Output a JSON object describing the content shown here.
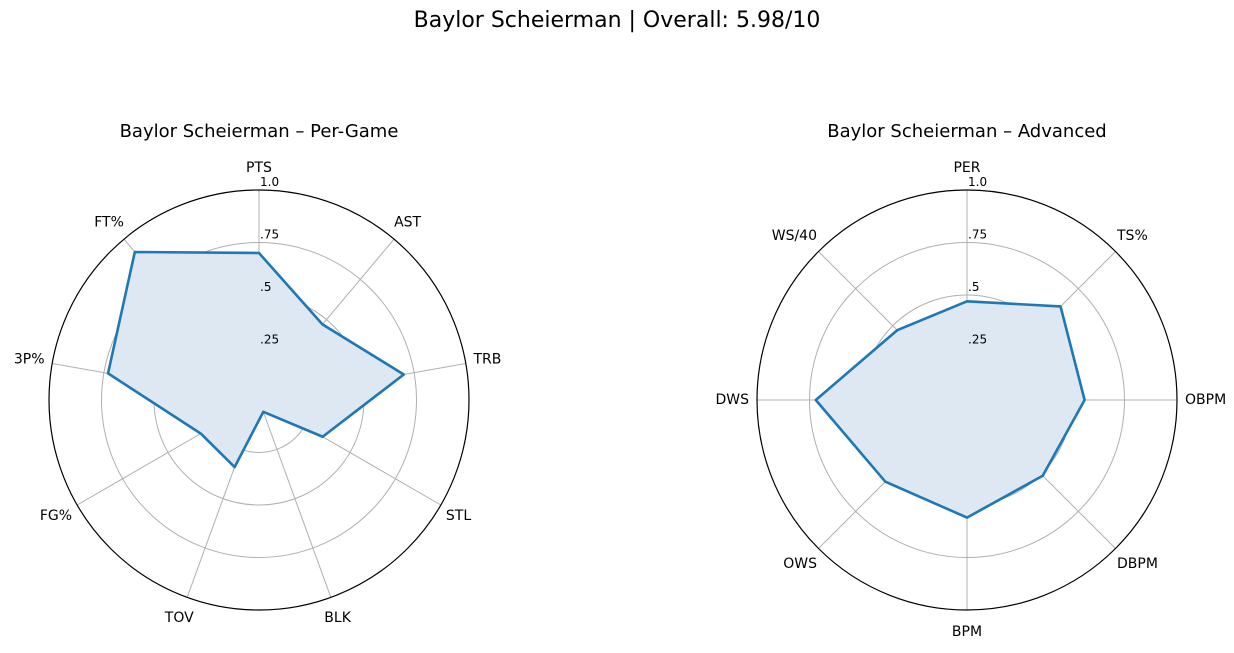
{
  "page": {
    "title": "Baylor Scheierman | Overall: 5.98/10"
  },
  "chart_data": [
    {
      "type": "radar",
      "title": "Baylor Scheierman – Per-Game",
      "categories": [
        "PTS",
        "AST",
        "TRB",
        "STL",
        "BLK",
        "TOV",
        "FG%",
        "3P%",
        "FT%"
      ],
      "values": [
        0.7,
        0.47,
        0.7,
        0.35,
        0.06,
        0.34,
        0.32,
        0.73,
        0.92
      ],
      "rticks": [
        0.25,
        0.5,
        0.75,
        1.0
      ],
      "rtick_labels": [
        ".25",
        ".5",
        ".75",
        "1.0"
      ],
      "rlim": [
        0,
        1
      ],
      "line_color": "#1f77b4",
      "fill_color": "#dde8f3",
      "grid": true
    },
    {
      "type": "radar",
      "title": "Baylor Scheierman – Advanced",
      "categories": [
        "PER",
        "TS%",
        "OBPM",
        "DBPM",
        "BPM",
        "OWS",
        "DWS",
        "WS/40"
      ],
      "values": [
        0.47,
        0.63,
        0.56,
        0.51,
        0.56,
        0.55,
        0.72,
        0.47
      ],
      "rticks": [
        0.25,
        0.5,
        0.75,
        1.0
      ],
      "rtick_labels": [
        ".25",
        ".5",
        ".75",
        "1.0"
      ],
      "rlim": [
        0,
        1
      ],
      "line_color": "#1f77b4",
      "fill_color": "#dde8f3",
      "grid": true
    }
  ]
}
